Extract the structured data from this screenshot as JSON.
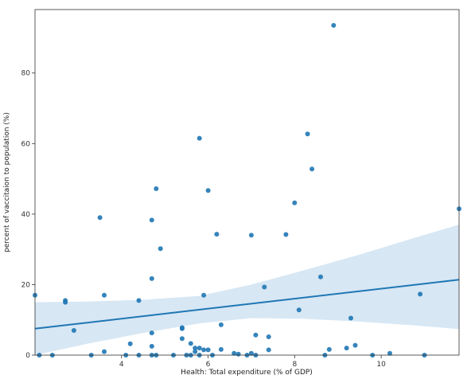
{
  "chart_data": {
    "type": "scatter",
    "title": "",
    "xlabel": "Health: Total expenditure (% of GDP)",
    "ylabel": "percent of vaccitaion to population (%)",
    "xlim": [
      2.0,
      11.8
    ],
    "ylim": [
      0,
      98
    ],
    "xticks": [
      4,
      6,
      8,
      10
    ],
    "yticks": [
      0,
      20,
      40,
      60,
      80
    ],
    "grid": false,
    "colors": {
      "points": "#1f77b4",
      "line": "#1f77b4",
      "band": "#c9dff0",
      "axes": "#333333",
      "background": "#ffffff"
    },
    "points": [
      [
        2.0,
        17.0
      ],
      [
        2.1,
        0.0
      ],
      [
        2.4,
        0.0
      ],
      [
        2.7,
        15.5
      ],
      [
        2.7,
        15.0
      ],
      [
        2.9,
        7.0
      ],
      [
        3.3,
        0.0
      ],
      [
        3.5,
        39.0
      ],
      [
        3.6,
        17.0
      ],
      [
        3.6,
        1.0
      ],
      [
        4.1,
        0.0
      ],
      [
        4.2,
        3.2
      ],
      [
        4.4,
        15.5
      ],
      [
        4.4,
        0.0
      ],
      [
        4.7,
        38.3
      ],
      [
        4.7,
        21.7
      ],
      [
        4.7,
        6.3
      ],
      [
        4.7,
        2.5
      ],
      [
        4.7,
        0.0
      ],
      [
        4.8,
        47.2
      ],
      [
        4.8,
        0.0
      ],
      [
        4.9,
        30.2
      ],
      [
        5.2,
        0.0
      ],
      [
        5.4,
        7.8
      ],
      [
        5.4,
        7.5
      ],
      [
        5.4,
        4.7
      ],
      [
        5.5,
        0.0
      ],
      [
        5.6,
        3.3
      ],
      [
        5.6,
        0.0
      ],
      [
        5.7,
        2.0
      ],
      [
        5.7,
        1.0
      ],
      [
        5.8,
        61.5
      ],
      [
        5.8,
        2.0
      ],
      [
        5.8,
        0.0
      ],
      [
        5.9,
        17.0
      ],
      [
        5.9,
        1.5
      ],
      [
        6.0,
        46.7
      ],
      [
        6.0,
        1.5
      ],
      [
        6.1,
        0.0
      ],
      [
        6.2,
        34.3
      ],
      [
        6.3,
        8.6
      ],
      [
        6.3,
        1.6
      ],
      [
        6.6,
        0.5
      ],
      [
        6.7,
        0.3
      ],
      [
        6.9,
        0.0
      ],
      [
        7.0,
        34.0
      ],
      [
        7.0,
        0.5
      ],
      [
        7.1,
        5.7
      ],
      [
        7.1,
        0.0
      ],
      [
        7.3,
        19.3
      ],
      [
        7.4,
        5.2
      ],
      [
        7.4,
        1.5
      ],
      [
        7.8,
        34.2
      ],
      [
        8.0,
        43.2
      ],
      [
        8.1,
        12.8
      ],
      [
        8.3,
        62.7
      ],
      [
        8.4,
        52.8
      ],
      [
        8.6,
        22.2
      ],
      [
        8.7,
        0.0
      ],
      [
        8.8,
        1.6
      ],
      [
        8.9,
        93.5
      ],
      [
        9.2,
        2.0
      ],
      [
        9.3,
        10.5
      ],
      [
        9.4,
        2.8
      ],
      [
        9.8,
        0.0
      ],
      [
        10.2,
        0.5
      ],
      [
        10.9,
        17.3
      ],
      [
        11.0,
        0.0
      ],
      [
        11.8,
        41.5
      ]
    ],
    "regression": {
      "x": [
        2.0,
        11.8
      ],
      "y": [
        7.5,
        21.4
      ],
      "ci_upper": [
        15.0,
        15.2,
        15.7,
        16.8,
        20.0,
        24.0,
        28.5,
        33.0,
        37.0
      ],
      "ci_lower": [
        0.0,
        3.2,
        6.3,
        9.0,
        10.5,
        10.3,
        9.5,
        8.5,
        7.4
      ],
      "ci_x": [
        2.0,
        3.2,
        4.5,
        5.8,
        7.0,
        8.2,
        9.5,
        10.7,
        11.8
      ]
    }
  }
}
